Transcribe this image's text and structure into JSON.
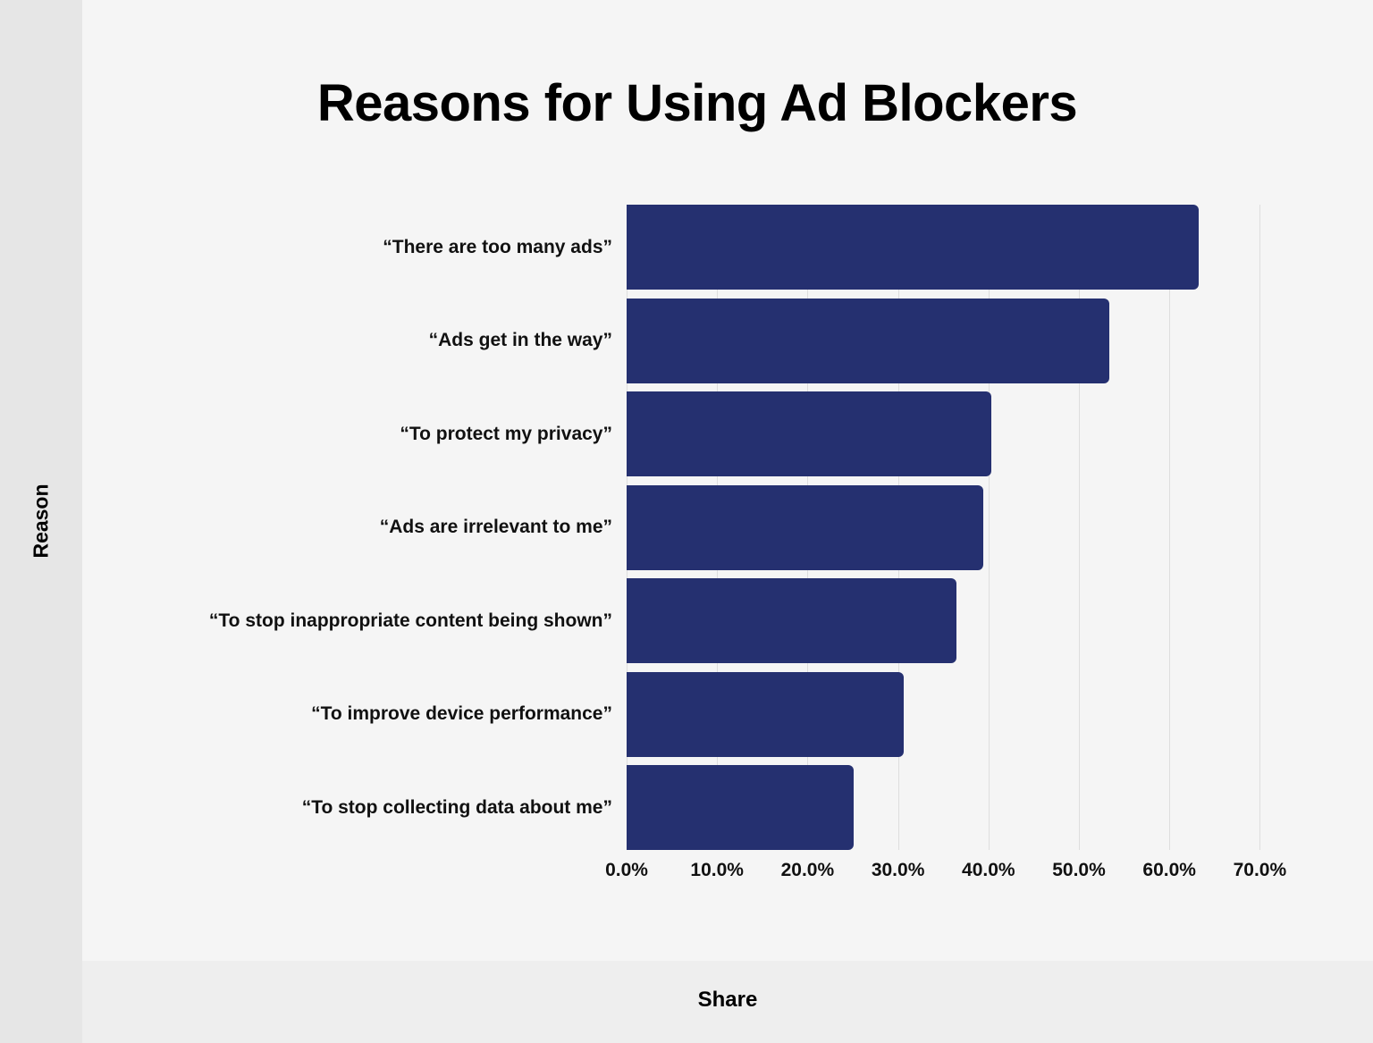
{
  "chart_data": {
    "type": "bar",
    "orientation": "horizontal",
    "title": "Reasons for Using Ad Blockers",
    "xlabel": "Share",
    "ylabel": "Reason",
    "categories": [
      "“There are too many ads”",
      "“Ads get in the way”",
      "“To protect my privacy”",
      "“Ads are irrelevant to me”",
      "“To stop inappropriate content being shown”",
      "“To improve device performance”",
      "“To stop collecting data about me”"
    ],
    "values": [
      63.2,
      53.4,
      40.3,
      39.4,
      36.5,
      30.6,
      25.1
    ],
    "xlim": [
      0,
      70
    ],
    "xticks": [
      "0.0%",
      "10.0%",
      "20.0%",
      "30.0%",
      "40.0%",
      "50.0%",
      "60.0%",
      "70.0%"
    ],
    "grid": true,
    "legend": null,
    "bar_color": "#253070"
  },
  "colors": {
    "background": "#f5f5f5",
    "left_panel": "#e6e6e6",
    "bottom_band": "#eeeeee",
    "bar": "#253070",
    "grid": "#dedede"
  }
}
